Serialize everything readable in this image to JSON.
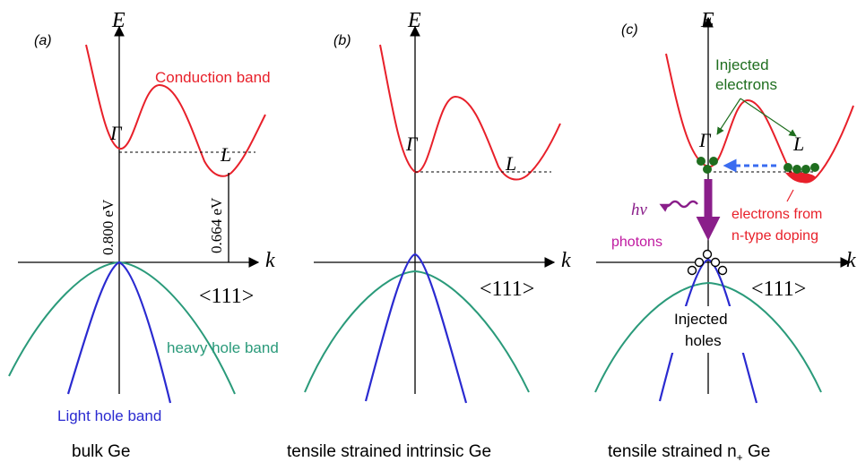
{
  "colors": {
    "conduction": "#e8202a",
    "heavy_hole": "#2a9a7a",
    "light_hole": "#2a2ad0",
    "axis": "#000000",
    "electron": "#1f6e1f",
    "photon": "#8a1e8a",
    "photon_label": "#c01aa0",
    "transfer_arrow": "#3a6cf0"
  },
  "panels": [
    {
      "label": "(a)",
      "energy_axis": "E",
      "k_axis": "k",
      "gamma": "Γ",
      "L": "L",
      "direction": "<111>",
      "conduction_label": "Conduction band",
      "gap_gamma": "0.800 eV",
      "gap_L": "0.664 eV",
      "heavy_hole_label": "heavy hole band",
      "light_hole_label": "Light hole band",
      "caption": "bulk Ge"
    },
    {
      "label": "(b)",
      "energy_axis": "E",
      "k_axis": "k",
      "gamma": "Γ",
      "L": "L",
      "direction": "<111>",
      "caption": "tensile strained intrinsic Ge"
    },
    {
      "label": "(c)",
      "energy_axis": "E",
      "k_axis": "k",
      "gamma": "Γ",
      "L": "L",
      "direction": "<111>",
      "injected_electrons_line1": "Injected",
      "injected_electrons_line2": "electrons",
      "hv": "hν",
      "photons": "photons",
      "doping_line1": "electrons from",
      "doping_line2": "n-type doping",
      "injected_holes_line1": "Injected",
      "injected_holes_line2": "holes",
      "caption_main": "tensile strained n",
      "caption_sub": "+",
      "caption_tail": " Ge"
    }
  ]
}
